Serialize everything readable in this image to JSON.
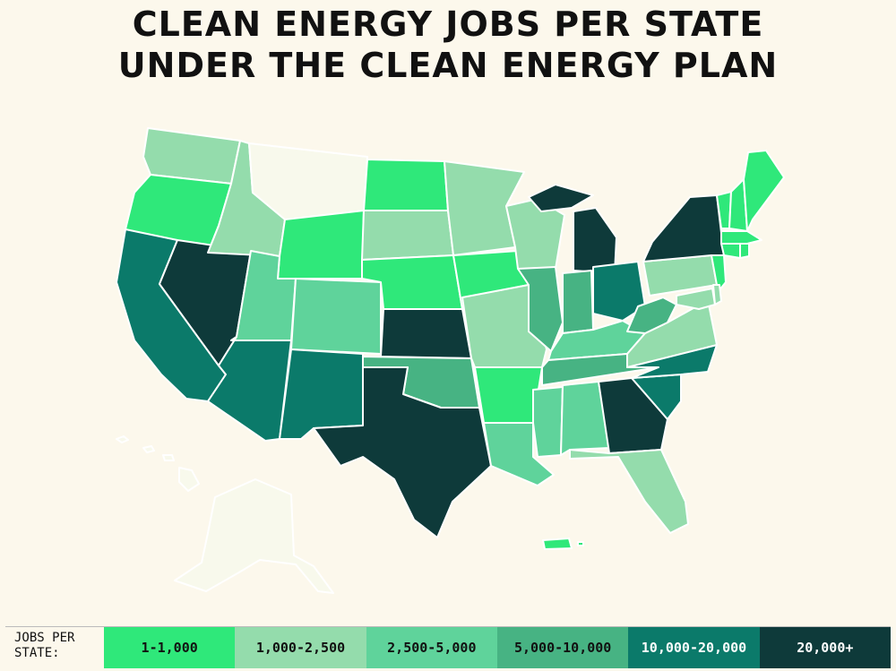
{
  "title": {
    "line1": "CLEAN ENERGY JOBS PER STATE",
    "line2": "UNDER THE CLEAN ENERGY PLAN"
  },
  "colors": {
    "background": "#fcf8ec",
    "tier0": "#f8f9ec",
    "tier1": "#2fe87a",
    "tier2": "#94dcac",
    "tier3": "#5fd39b",
    "tier4": "#47b383",
    "tier5": "#0b7a6a",
    "tier6": "#0e3a3a"
  },
  "legend": {
    "label": "JOBS PER\nSTATE:",
    "bins": [
      {
        "label": "1-1,000",
        "color": "#2fe87a",
        "text_color": "#111111"
      },
      {
        "label": "1,000-2,500",
        "color": "#94dcac",
        "text_color": "#111111"
      },
      {
        "label": "2,500-5,000",
        "color": "#5fd39b",
        "text_color": "#111111"
      },
      {
        "label": "5,000-10,000",
        "color": "#47b383",
        "text_color": "#111111"
      },
      {
        "label": "10,000-20,000",
        "color": "#0b7a6a",
        "text_color": "#ffffff"
      },
      {
        "label": "20,000+",
        "color": "#0e3a3a",
        "text_color": "#ffffff"
      }
    ]
  },
  "states": [
    {
      "state": "Washington",
      "tier": 2
    },
    {
      "state": "Oregon",
      "tier": 1
    },
    {
      "state": "California",
      "tier": 5
    },
    {
      "state": "Nevada",
      "tier": 6
    },
    {
      "state": "Idaho",
      "tier": 2
    },
    {
      "state": "Montana",
      "tier": 0
    },
    {
      "state": "Wyoming",
      "tier": 1
    },
    {
      "state": "Utah",
      "tier": 3
    },
    {
      "state": "Arizona",
      "tier": 5
    },
    {
      "state": "Colorado",
      "tier": 3
    },
    {
      "state": "New Mexico",
      "tier": 5
    },
    {
      "state": "North Dakota",
      "tier": 1
    },
    {
      "state": "South Dakota",
      "tier": 2
    },
    {
      "state": "Nebraska",
      "tier": 1
    },
    {
      "state": "Kansas",
      "tier": 6
    },
    {
      "state": "Oklahoma",
      "tier": 4
    },
    {
      "state": "Texas",
      "tier": 6
    },
    {
      "state": "Minnesota",
      "tier": 2
    },
    {
      "state": "Iowa",
      "tier": 1
    },
    {
      "state": "Missouri",
      "tier": 2
    },
    {
      "state": "Arkansas",
      "tier": 1
    },
    {
      "state": "Louisiana",
      "tier": 3
    },
    {
      "state": "Wisconsin",
      "tier": 2
    },
    {
      "state": "Illinois",
      "tier": 4
    },
    {
      "state": "Michigan",
      "tier": 6
    },
    {
      "state": "Indiana",
      "tier": 4
    },
    {
      "state": "Ohio",
      "tier": 5
    },
    {
      "state": "Kentucky",
      "tier": 3
    },
    {
      "state": "Tennessee",
      "tier": 4
    },
    {
      "state": "Mississippi",
      "tier": 3
    },
    {
      "state": "Alabama",
      "tier": 3
    },
    {
      "state": "Georgia",
      "tier": 6
    },
    {
      "state": "Florida",
      "tier": 2
    },
    {
      "state": "South Carolina",
      "tier": 5
    },
    {
      "state": "North Carolina",
      "tier": 5
    },
    {
      "state": "Virginia",
      "tier": 2
    },
    {
      "state": "West Virginia",
      "tier": 4
    },
    {
      "state": "Pennsylvania",
      "tier": 2
    },
    {
      "state": "New York",
      "tier": 6
    },
    {
      "state": "New Jersey",
      "tier": 1
    },
    {
      "state": "Maryland",
      "tier": 2
    },
    {
      "state": "Delaware",
      "tier": 2
    },
    {
      "state": "Vermont",
      "tier": 1
    },
    {
      "state": "New Hampshire",
      "tier": 1
    },
    {
      "state": "Maine",
      "tier": 1
    },
    {
      "state": "Massachusetts",
      "tier": 1
    },
    {
      "state": "Connecticut",
      "tier": 1
    },
    {
      "state": "Rhode Island",
      "tier": 1
    },
    {
      "state": "Alaska",
      "tier": 0
    },
    {
      "state": "Hawaii",
      "tier": 0
    },
    {
      "state": "Puerto Rico",
      "tier": 1
    }
  ]
}
